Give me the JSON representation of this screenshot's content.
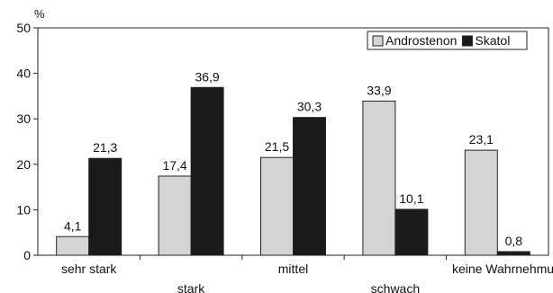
{
  "chart_data": {
    "type": "bar",
    "ylabel": "%",
    "ylim": [
      0,
      50
    ],
    "yticks": [
      0,
      10,
      20,
      30,
      40,
      50
    ],
    "grid": false,
    "legend_position": "top-right",
    "categories": [
      "sehr stark",
      "stark",
      "mittel",
      "schwach",
      "keine Wahrnehmung"
    ],
    "series": [
      {
        "name": "Androstenon",
        "color": "#d4d4d4",
        "values": [
          4.1,
          17.4,
          21.5,
          33.9,
          23.1
        ],
        "labels": [
          "4,1",
          "17,4",
          "21,5",
          "33,9",
          "23,1"
        ]
      },
      {
        "name": "Skatol",
        "color": "#1a1a1a",
        "values": [
          21.3,
          36.9,
          30.3,
          10.1,
          0.8
        ],
        "labels": [
          "21,3",
          "36,9",
          "30,3",
          "10,1",
          "0,8"
        ]
      }
    ]
  }
}
